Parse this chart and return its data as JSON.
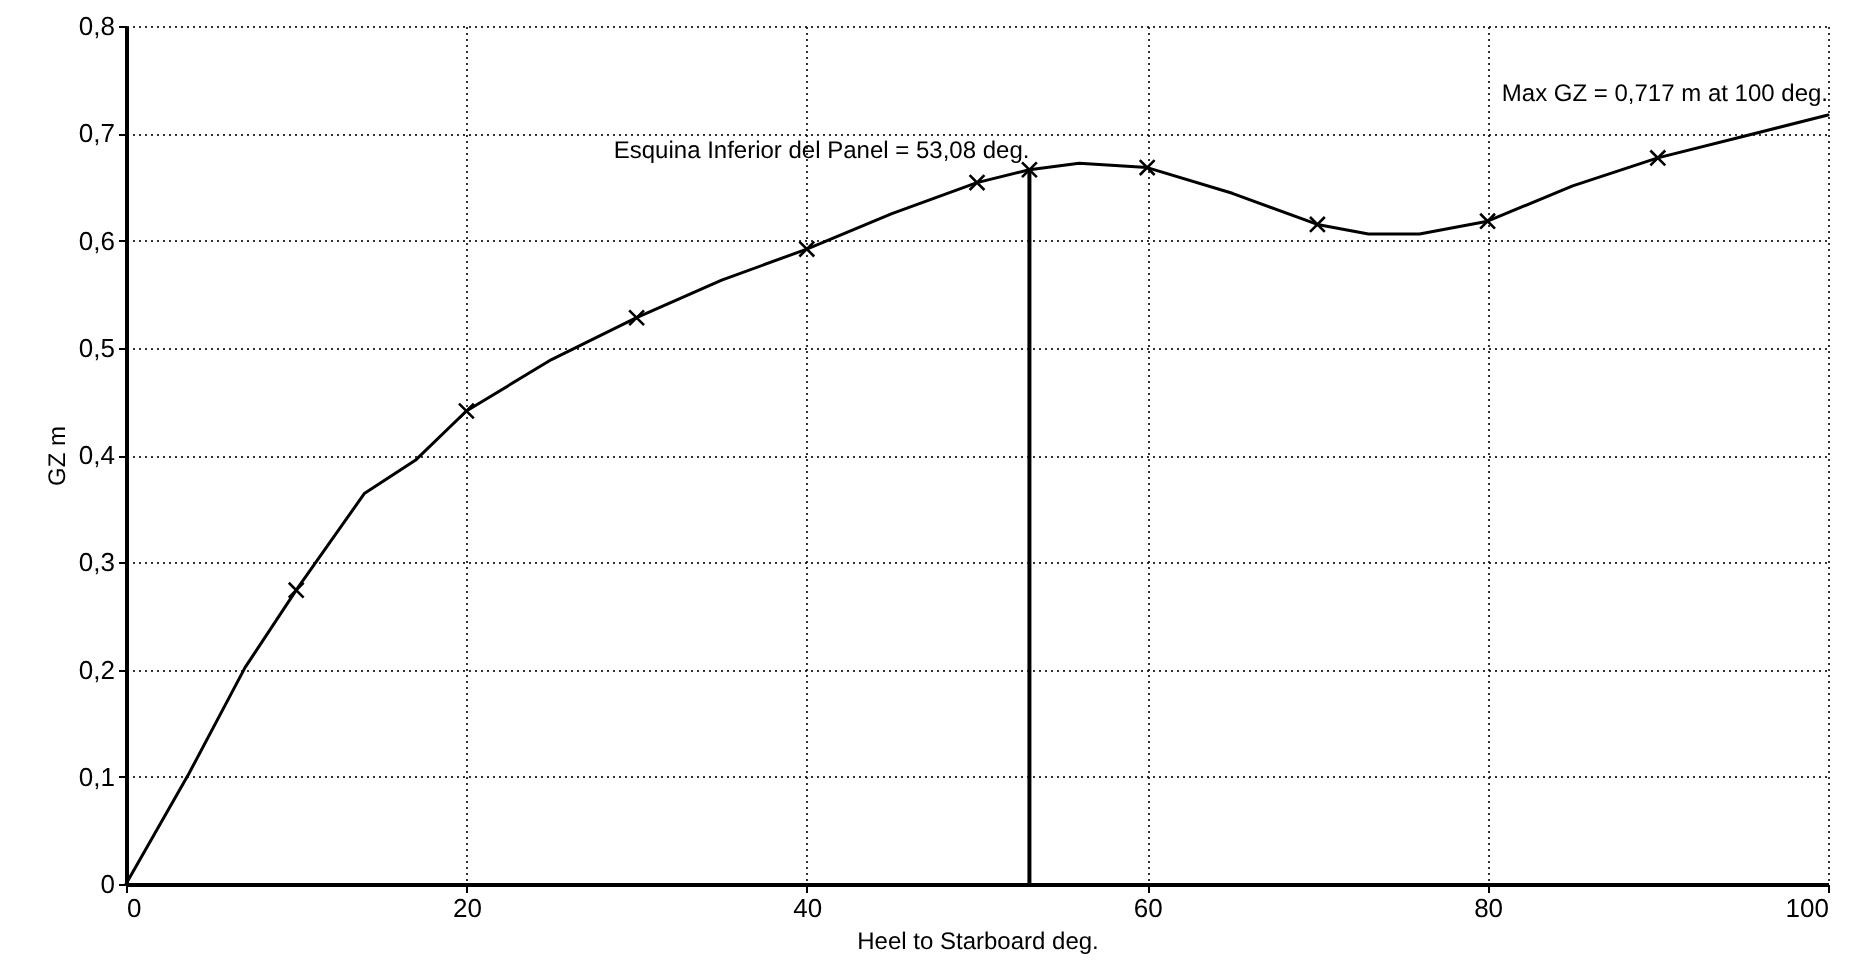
{
  "chart_data": {
    "type": "line",
    "xlabel": "Heel to Starboard   deg.",
    "ylabel": "GZ  m",
    "xlim": [
      0,
      100
    ],
    "xticks": [
      0,
      20,
      40,
      60,
      80,
      100
    ],
    "ylim": [
      0,
      0.8
    ],
    "yticks": [
      {
        "value": 0,
        "label": "0"
      },
      {
        "value": 0.1,
        "label": "0,1"
      },
      {
        "value": 0.2,
        "label": "0,2"
      },
      {
        "value": 0.3,
        "label": "0,3"
      },
      {
        "value": 0.4,
        "label": "0,4"
      },
      {
        "value": 0.5,
        "label": "0,5"
      },
      {
        "value": 0.6,
        "label": "0,6"
      },
      {
        "value": 0.7,
        "label": "0,7"
      },
      {
        "value": 0.8,
        "label": "0,8"
      }
    ],
    "grid": true,
    "series": [
      {
        "color": "#000000",
        "x": [
          0,
          3.7,
          7,
          10,
          14,
          17,
          20,
          25,
          30,
          35,
          40,
          45,
          50,
          53.08,
          56,
          60,
          65,
          70,
          73,
          76,
          80,
          85,
          90,
          95,
          100
        ],
        "values": [
          0,
          0.103,
          0.202,
          0.274,
          0.364,
          0.395,
          0.441,
          0.489,
          0.528,
          0.563,
          0.592,
          0.625,
          0.654,
          0.666,
          0.672,
          0.668,
          0.644,
          0.615,
          0.606,
          0.606,
          0.618,
          0.651,
          0.677,
          0.697,
          0.717
        ]
      },
      {
        "type": "scatter",
        "color": "#000000",
        "marker": "cross",
        "x": [
          10,
          20,
          30,
          40,
          50,
          53.08,
          60,
          70,
          80,
          90
        ],
        "values": [
          0.274,
          0.441,
          0.528,
          0.592,
          0.654,
          0.666,
          0.668,
          0.615,
          0.618,
          0.677
        ]
      }
    ],
    "ref_lines": [
      {
        "axis": "x",
        "value": 53.08,
        "label": "Esquina Inferior del Panel = 53,08 deg.",
        "color": "#000000"
      }
    ],
    "annotations": [
      {
        "text": "Max GZ = 0,717 m at 100 deg.",
        "x": 100,
        "y": 0.717
      }
    ]
  }
}
